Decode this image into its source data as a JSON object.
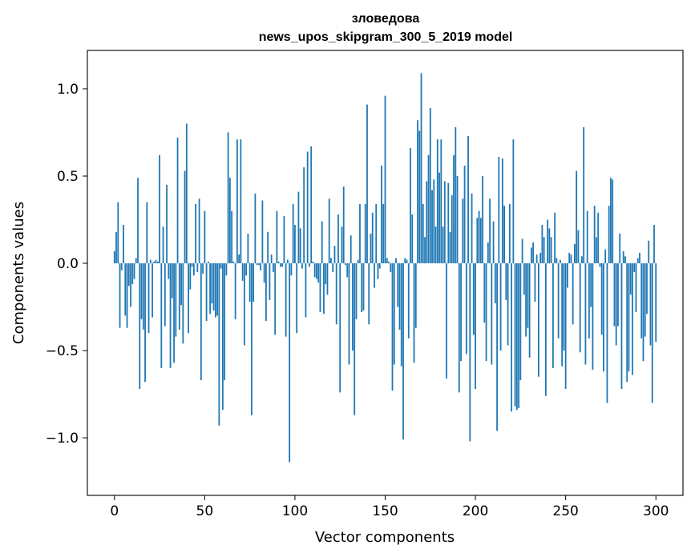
{
  "chart_data": {
    "type": "bar",
    "title_line1": "зловедова",
    "title_line2": "news_upos_skipgram_300_5_2019 model",
    "xlabel": "Vector components",
    "ylabel": "Components values",
    "xlim": [
      -15,
      315
    ],
    "ylim": [
      -1.33,
      1.22
    ],
    "xticks": [
      0,
      50,
      100,
      150,
      200,
      250,
      300
    ],
    "xtick_labels": [
      "0",
      "50",
      "100",
      "150",
      "200",
      "250",
      "300"
    ],
    "yticks": [
      -1.0,
      -0.5,
      0.0,
      0.5,
      1.0
    ],
    "ytick_labels": [
      "−1.0",
      "−0.5",
      "0.0",
      "0.5",
      "1.0"
    ],
    "grid": false,
    "bar_color": "#1f77b4",
    "values": [
      0.07,
      0.18,
      0.35,
      -0.37,
      -0.04,
      0.22,
      -0.3,
      -0.37,
      -0.13,
      -0.25,
      -0.12,
      -0.09,
      0.03,
      0.49,
      -0.72,
      -0.32,
      -0.38,
      -0.68,
      0.35,
      -0.4,
      0.02,
      -0.31,
      0.01,
      0.02,
      0.01,
      0.62,
      -0.6,
      0.21,
      -0.36,
      0.45,
      -0.09,
      -0.6,
      -0.2,
      -0.57,
      -0.42,
      0.72,
      -0.38,
      -0.24,
      -0.46,
      0.53,
      0.8,
      -0.4,
      -0.15,
      -0.02,
      -0.07,
      0.34,
      -0.05,
      0.37,
      -0.67,
      -0.06,
      0.3,
      -0.33,
      0.01,
      -0.29,
      -0.23,
      -0.27,
      -0.31,
      -0.3,
      -0.93,
      -0.03,
      -0.84,
      -0.67,
      -0.07,
      0.75,
      0.49,
      0.3,
      0.01,
      -0.32,
      0.71,
      0.05,
      0.71,
      -0.1,
      -0.47,
      -0.07,
      0.17,
      -0.22,
      -0.87,
      -0.22,
      0.4,
      -0.01,
      -0.01,
      -0.04,
      0.36,
      -0.11,
      -0.33,
      0.18,
      -0.21,
      0.05,
      -0.05,
      -0.41,
      0.3,
      0.01,
      -0.02,
      -0.02,
      0.27,
      -0.42,
      0.02,
      -1.14,
      -0.07,
      0.34,
      0.22,
      -0.4,
      0.41,
      0.2,
      -0.03,
      0.55,
      -0.31,
      0.64,
      -0.02,
      0.67,
      0.01,
      -0.08,
      -0.09,
      -0.11,
      -0.28,
      0.24,
      -0.29,
      -0.12,
      -0.18,
      0.37,
      0.03,
      -0.05,
      0.1,
      -0.35,
      0.28,
      -0.74,
      0.21,
      0.44,
      -0.01,
      -0.08,
      -0.58,
      0.16,
      -0.5,
      -0.87,
      -0.32,
      0.02,
      0.34,
      -0.28,
      -0.27,
      0.34,
      0.91,
      -0.35,
      0.17,
      0.29,
      -0.14,
      0.34,
      -0.09,
      -0.03,
      0.56,
      0.34,
      0.96,
      0.03,
      0.01,
      -0.05,
      -0.73,
      -0.58,
      0.03,
      -0.25,
      -0.38,
      -0.59,
      -1.01,
      0.03,
      0.02,
      -0.43,
      0.66,
      0.28,
      -0.57,
      -0.37,
      0.82,
      0.76,
      1.09,
      0.34,
      0.15,
      0.47,
      0.62,
      0.89,
      0.42,
      0.48,
      0.21,
      0.71,
      0.52,
      0.71,
      0.21,
      0.47,
      -0.66,
      0.46,
      0.18,
      0.39,
      0.62,
      0.78,
      0.5,
      -0.74,
      -0.56,
      0.37,
      0.56,
      -0.52,
      0.73,
      -1.02,
      0.4,
      -0.41,
      -0.72,
      0.26,
      0.3,
      0.26,
      0.5,
      -0.34,
      -0.56,
      0.12,
      0.37,
      -0.58,
      0.24,
      -0.23,
      -0.96,
      0.61,
      -0.5,
      0.6,
      0.33,
      -0.21,
      -0.47,
      0.34,
      -0.85,
      0.71,
      -0.82,
      -0.84,
      -0.83,
      -0.67,
      0.14,
      -0.18,
      -0.42,
      -0.37,
      -0.54,
      0.09,
      0.12,
      -0.22,
      0.05,
      -0.65,
      0.06,
      0.22,
      0.15,
      -0.76,
      0.25,
      0.2,
      0.15,
      -0.6,
      0.29,
      0.03,
      -0.43,
      0.02,
      -0.59,
      -0.5,
      -0.72,
      -0.14,
      0.06,
      0.05,
      -0.35,
      0.11,
      0.53,
      0.19,
      -0.51,
      0.04,
      0.78,
      -0.58,
      0.3,
      -0.43,
      -0.25,
      -0.61,
      0.33,
      0.15,
      0.29,
      -0.02,
      -0.41,
      -0.62,
      0.08,
      -0.8,
      0.33,
      0.49,
      0.48,
      -0.36,
      -0.47,
      -0.36,
      0.17,
      -0.72,
      0.07,
      0.04,
      -0.68,
      -0.62,
      -0.18,
      -0.64,
      -0.05,
      -0.28,
      0.03,
      0.06,
      -0.43,
      -0.56,
      -0.42,
      -0.29,
      0.13,
      -0.47,
      -0.8,
      0.22,
      -0.45
    ]
  }
}
